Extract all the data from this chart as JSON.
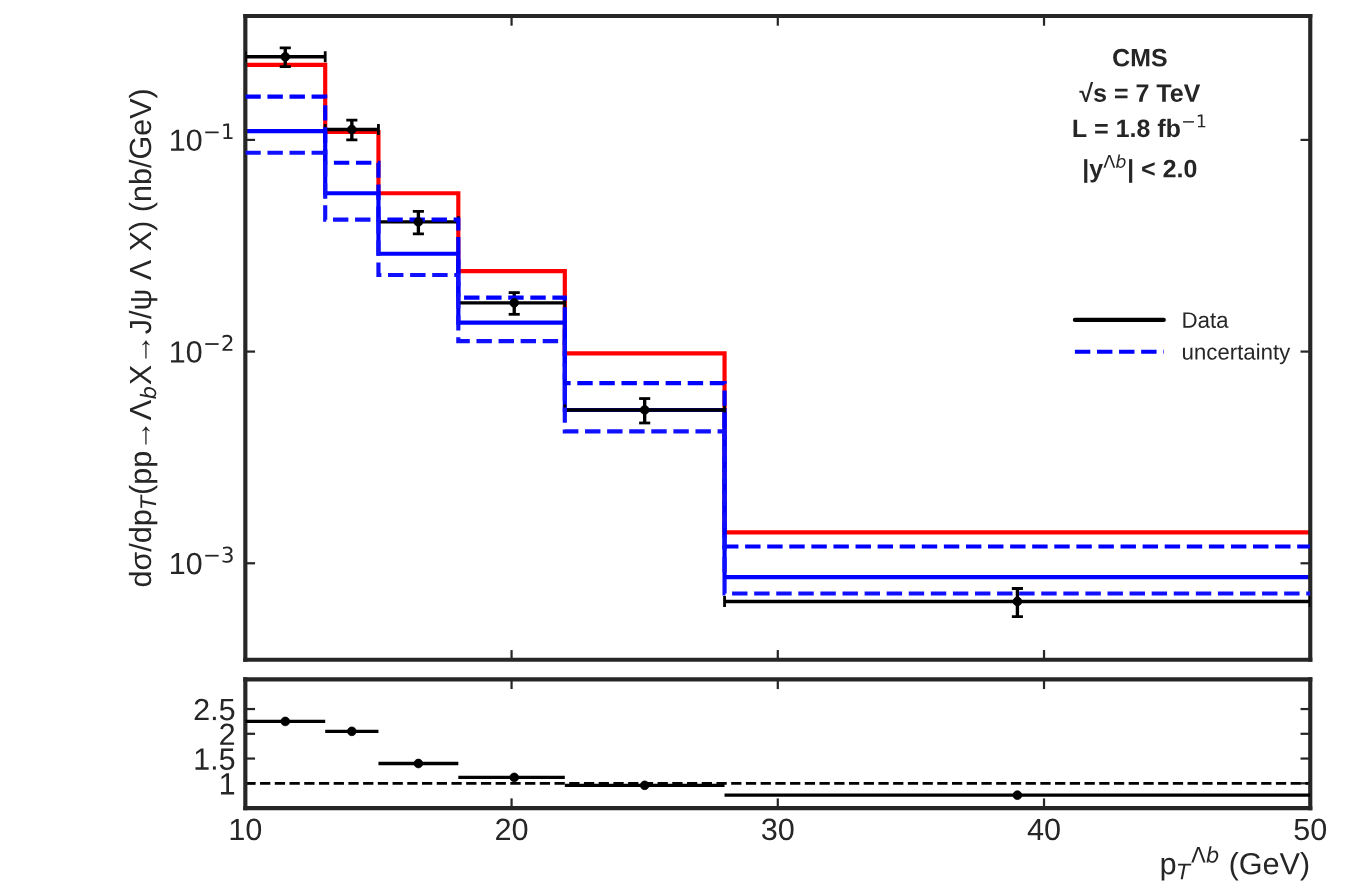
{
  "chart_data": [
    {
      "type": "histogram",
      "ylabel": "dσ/dp$_{T}$(pp→Λ$_{b}$X→J/ψ Λ X) (nb/GeV)",
      "bins": [
        10,
        13,
        15,
        18,
        22,
        28,
        50
      ],
      "log": "y",
      "xlim": [
        10,
        50
      ],
      "xticks": [
        10,
        20,
        30,
        40,
        50
      ],
      "ylim": [
        0.00035,
        0.385
      ],
      "yticks": [
        {
          "value": 0.001,
          "label": "10$^{−3}$"
        },
        {
          "value": 0.01,
          "label": "10$^{−2}$"
        },
        {
          "value": 0.1,
          "label": "10$^{−1}$"
        }
      ],
      "tick_labels": "y",
      "legend": "right",
      "grid": false,
      "annotations": [
        "CMS",
        "√s = 7 TeV",
        "L = 1.8 fb$^{−1}$",
        "|y$^{Λb}$| < 2.0"
      ],
      "series": [
        {
          "name": "Data",
          "type": "scatter",
          "color": "#000000",
          "x": [
            11.5,
            14,
            16.5,
            20.1,
            25,
            39
          ],
          "values": [
            0.247,
            0.112,
            0.041,
            0.017,
            0.0053,
            0.00066
          ],
          "errors": [
            0.025,
            0.012,
            0.005,
            0.002,
            0.0007,
            0.0001
          ],
          "xerrors": [
            [
              10,
              13
            ],
            [
              13,
              15
            ],
            [
              15,
              18
            ],
            [
              18,
              22
            ],
            [
              22,
              28
            ],
            [
              28,
              50
            ]
          ]
        },
        {
          "color": "#ff0000",
          "values": [
            0.226,
            0.109,
            0.056,
            0.024,
            0.0098,
            0.0014
          ]
        },
        {
          "color": "#0000ff",
          "values": [
            0.11,
            0.056,
            0.029,
            0.0137,
            0.0053,
            0.00086
          ]
        },
        {
          "name": "uncertainty",
          "color": "#0000ff",
          "line_style": "dashed",
          "values": [
            0.16,
            0.078,
            0.042,
            0.018,
            0.0071,
            0.0012
          ]
        },
        {
          "color": "#1010ff",
          "line_style": "dashed",
          "values": [
            0.087,
            0.042,
            0.023,
            0.0112,
            0.0042,
            0.00072
          ]
        }
      ]
    },
    {
      "type": "scatter",
      "xlabel": "p$_{T}$$^{Λb}$ (GeV)",
      "xlim": [
        10,
        50
      ],
      "xticks": [
        10,
        20,
        30,
        40,
        50
      ],
      "ylim": [
        0.5,
        3.1
      ],
      "yticks": [
        1,
        1.5,
        2,
        2.5
      ],
      "grid": false,
      "ref_lines": [
        {
          "axis": "y",
          "value": 1,
          "color": "#000000",
          "line_style": "dashed"
        }
      ],
      "series": [
        {
          "color": "#000000",
          "x": [
            11.5,
            14,
            16.5,
            20.1,
            25,
            39
          ],
          "values": [
            2.25,
            2.05,
            1.4,
            1.12,
            0.96,
            0.76
          ],
          "xerrors": [
            [
              10,
              13
            ],
            [
              13,
              15
            ],
            [
              15,
              18
            ],
            [
              18,
              22
            ],
            [
              22,
              28
            ],
            [
              28,
              50
            ]
          ]
        }
      ]
    }
  ]
}
